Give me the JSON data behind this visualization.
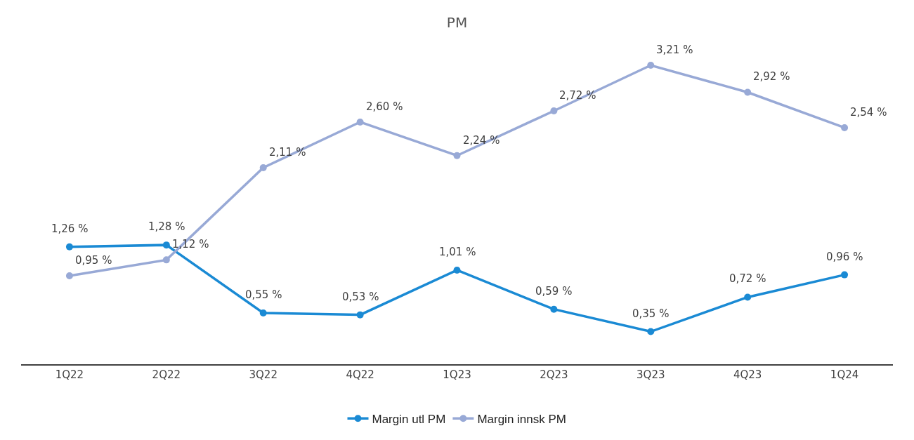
{
  "chart_data": {
    "type": "line",
    "title": "PM",
    "categories": [
      "1Q22",
      "2Q22",
      "3Q22",
      "4Q22",
      "1Q23",
      "2Q23",
      "3Q23",
      "4Q23",
      "1Q24"
    ],
    "series": [
      {
        "name": "Margin utl PM",
        "color": "#1a8ad4",
        "values": [
          1.26,
          1.28,
          0.55,
          0.53,
          1.01,
          0.59,
          0.35,
          0.72,
          0.96
        ],
        "value_labels": [
          "1,26 %",
          "1,28 %",
          "0,55 %",
          "0,53 %",
          "1,01 %",
          "0,59 %",
          "0,35 %",
          "0,72 %",
          "0,96 %"
        ]
      },
      {
        "name": "Margin innsk PM",
        "color": "#98a9d6",
        "values": [
          0.95,
          1.12,
          2.11,
          2.6,
          2.24,
          2.72,
          3.21,
          2.92,
          2.54
        ],
        "value_labels": [
          "0,95 %",
          "1,12 %",
          "2,11 %",
          "2,60 %",
          "2,24 %",
          "2,72 %",
          "3,21 %",
          "2,92 %",
          "2,54 %"
        ]
      }
    ],
    "tick_labels": "x",
    "legend": "bottom",
    "marker": "circle",
    "line_style": "solid"
  }
}
